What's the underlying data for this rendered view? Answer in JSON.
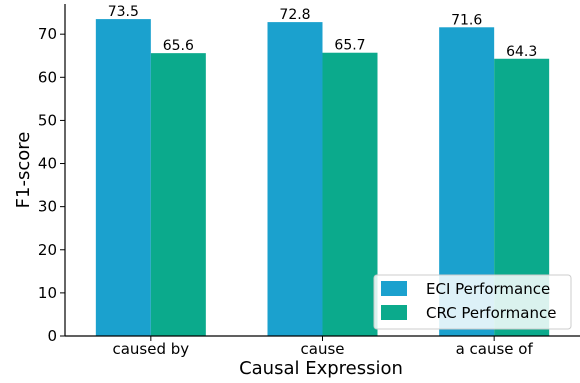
{
  "chart_data": {
    "type": "bar",
    "categories": [
      "caused by",
      "cause",
      "a cause of"
    ],
    "series": [
      {
        "name": "ECI Performance",
        "values": [
          73.5,
          72.8,
          71.6
        ],
        "color": "#1BA1CE"
      },
      {
        "name": "CRC Performance",
        "values": [
          65.6,
          65.7,
          64.3
        ],
        "color": "#0BAA8C"
      }
    ],
    "value_labels": [
      [
        "73.5",
        "72.8",
        "71.6"
      ],
      [
        "65.6",
        "65.7",
        "64.3"
      ]
    ],
    "xlabel": "Causal Expression",
    "ylabel": "F1-score",
    "ylim": [
      0,
      77
    ],
    "yticks": [
      "0",
      "10",
      "20",
      "30",
      "40",
      "50",
      "60",
      "70"
    ],
    "grid": false,
    "legend_position": "bottom-right"
  }
}
